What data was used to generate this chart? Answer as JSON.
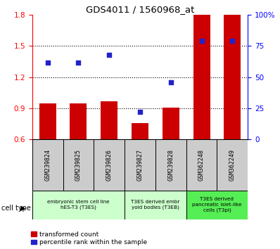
{
  "title": "GDS4011 / 1560968_at",
  "samples": [
    "GSM239824",
    "GSM239825",
    "GSM239826",
    "GSM239827",
    "GSM239828",
    "GSM362248",
    "GSM362249"
  ],
  "transformed_counts": [
    0.95,
    0.95,
    0.97,
    0.76,
    0.91,
    1.8,
    1.8
  ],
  "percentile_ranks_pct": [
    62,
    62,
    68,
    22,
    46,
    79,
    79
  ],
  "ylim_left": [
    0.6,
    1.8
  ],
  "ylim_right": [
    0,
    100
  ],
  "yticks_left": [
    0.6,
    0.9,
    1.2,
    1.5,
    1.8
  ],
  "yticks_right": [
    0,
    25,
    50,
    75,
    100
  ],
  "bar_color": "#cc0000",
  "dot_color": "#2222cc",
  "bar_width": 0.55,
  "cell_type_groups": [
    {
      "label": "embryonic stem cell line\nhES-T3 (T3ES)",
      "start": 0,
      "end": 2,
      "color": "#ccffcc"
    },
    {
      "label": "T3ES derived embr\nyoid bodies (T3EB)",
      "start": 3,
      "end": 4,
      "color": "#ccffcc"
    },
    {
      "label": "T3ES derived\npancreatic islet-like\ncells (T3pi)",
      "start": 5,
      "end": 6,
      "color": "#55ee55"
    }
  ],
  "cell_type_label": "cell type",
  "legend_red_label": "transformed count",
  "legend_blue_label": "percentile rank within the sample",
  "background_color": "#ffffff",
  "sample_box_color": "#cccccc"
}
